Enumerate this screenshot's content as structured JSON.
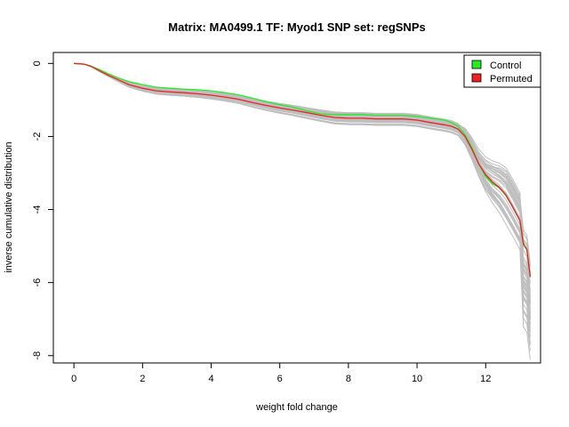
{
  "chart_data": {
    "type": "line",
    "title": "Matrix: MA0499.1 TF: Myod1 SNP set: regSNPs",
    "xlabel": "weight fold change",
    "ylabel": "inverse cumulative distribution",
    "xlim": [
      -0.6,
      13.6
    ],
    "ylim": [
      -8.2,
      0.3
    ],
    "xticks": [
      0,
      2,
      4,
      6,
      8,
      10,
      12
    ],
    "yticks": [
      0,
      -2,
      -4,
      -6,
      -8
    ],
    "grid": false,
    "legend_position": "top-right",
    "colors": {
      "control": "#00dd00",
      "permuted": "#dd0000",
      "background_runs": "#bebebe",
      "background_runs_count": 40
    },
    "series": [
      {
        "name": "Control",
        "color": "#22ee22",
        "x": [
          0,
          0.3,
          0.5,
          0.7,
          1.0,
          1.3,
          1.6,
          2.0,
          2.4,
          2.8,
          3.2,
          3.6,
          4.0,
          4.4,
          4.8,
          5.2,
          5.6,
          6.0,
          6.4,
          6.8,
          7.2,
          7.6,
          8.0,
          8.4,
          8.8,
          9.2,
          9.6,
          10.0,
          10.4,
          10.8,
          11.0,
          11.2,
          11.4,
          11.6,
          11.8,
          12.0,
          12.2,
          12.4,
          12.6,
          12.8,
          13.0,
          13.1,
          13.2,
          13.3
        ],
        "y": [
          0,
          -0.02,
          -0.07,
          -0.15,
          -0.28,
          -0.4,
          -0.5,
          -0.58,
          -0.65,
          -0.68,
          -0.7,
          -0.72,
          -0.75,
          -0.8,
          -0.86,
          -0.95,
          -1.05,
          -1.13,
          -1.2,
          -1.3,
          -1.38,
          -1.4,
          -1.4,
          -1.4,
          -1.42,
          -1.42,
          -1.42,
          -1.45,
          -1.5,
          -1.55,
          -1.62,
          -1.72,
          -1.95,
          -2.3,
          -2.75,
          -3.1,
          -3.3,
          -3.4,
          -3.6,
          -3.95,
          -4.3,
          -4.9,
          -5.1,
          -5.8
        ]
      },
      {
        "name": "Permuted",
        "color": "#ee2222",
        "x": [
          0,
          0.3,
          0.5,
          0.7,
          1.0,
          1.3,
          1.6,
          2.0,
          2.4,
          2.8,
          3.2,
          3.6,
          4.0,
          4.4,
          4.8,
          5.2,
          5.6,
          6.0,
          6.4,
          6.8,
          7.2,
          7.6,
          8.0,
          8.4,
          8.8,
          9.2,
          9.6,
          10.0,
          10.4,
          10.8,
          11.0,
          11.2,
          11.4,
          11.6,
          11.8,
          12.0,
          12.2,
          12.4,
          12.6,
          12.8,
          13.0,
          13.1,
          13.2,
          13.3
        ],
        "y": [
          0,
          -0.02,
          -0.08,
          -0.18,
          -0.32,
          -0.45,
          -0.58,
          -0.68,
          -0.75,
          -0.78,
          -0.8,
          -0.83,
          -0.87,
          -0.92,
          -0.98,
          -1.07,
          -1.15,
          -1.22,
          -1.28,
          -1.35,
          -1.42,
          -1.48,
          -1.5,
          -1.5,
          -1.52,
          -1.52,
          -1.52,
          -1.55,
          -1.62,
          -1.68,
          -1.72,
          -1.8,
          -2.0,
          -2.35,
          -2.75,
          -3.05,
          -3.25,
          -3.4,
          -3.62,
          -3.95,
          -4.3,
          -4.95,
          -5.1,
          -5.85
        ]
      }
    ]
  }
}
